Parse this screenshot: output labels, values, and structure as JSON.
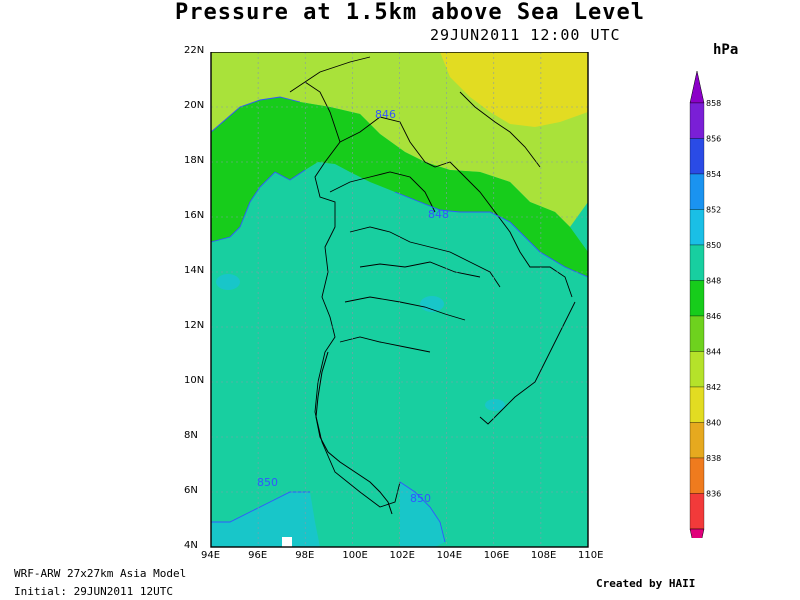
{
  "title": "Pressure at 1.5km above Sea Level",
  "valid_time": "29JUN2011 12:00 UTC",
  "unit": "hPa",
  "model_label": "WRF-ARW 27x27km Asia Model",
  "initial_label": "Initial: 29JUN2011 12UTC",
  "credit": "Created by HAII",
  "lon_labels": [
    "94E",
    "96E",
    "98E",
    "100E",
    "102E",
    "104E",
    "106E",
    "108E",
    "110E"
  ],
  "lat_labels": [
    "22N",
    "20N",
    "18N",
    "16N",
    "14N",
    "12N",
    "10N",
    "8N",
    "6N",
    "4N"
  ],
  "contour_labels": [
    "846",
    "848",
    "850",
    "850"
  ],
  "colorbar": {
    "levels": [
      "858",
      "856",
      "854",
      "852",
      "850",
      "848",
      "846",
      "844",
      "842",
      "840",
      "838",
      "836"
    ],
    "colors": [
      "#7a1fd6",
      "#2a4be6",
      "#1a93f0",
      "#1abfe6",
      "#18cfa0",
      "#17cc1b",
      "#6ed21e",
      "#b5e22a",
      "#e2dc22",
      "#e6a91f",
      "#ef7b1e",
      "#f23a3a"
    ],
    "top_color": "#8b00c8",
    "bottom_color": "#e0007a"
  },
  "map_colors": {
    "c850": "#18cfa0",
    "c848": "#17cc1b",
    "c846": "#a9e23a",
    "c844": "#e2dc22",
    "c852": "#18c6c9",
    "c854": "#1e90ff",
    "border": "#000000"
  }
}
